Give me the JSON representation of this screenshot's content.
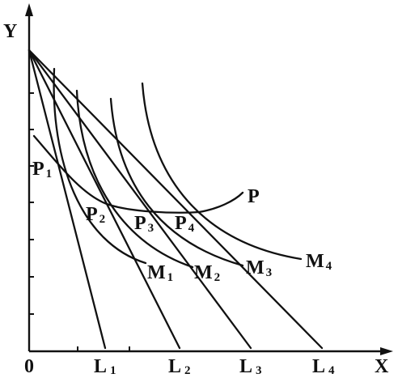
{
  "axes": {
    "x_label": "X",
    "y_label": "Y",
    "origin_label": "0"
  },
  "budget_lines": [
    {
      "letter": "L",
      "sub": "1"
    },
    {
      "letter": "L",
      "sub": "2"
    },
    {
      "letter": "L",
      "sub": "3"
    },
    {
      "letter": "L",
      "sub": "4"
    }
  ],
  "indifference_curves": [
    {
      "letter": "M",
      "sub": "1"
    },
    {
      "letter": "M",
      "sub": "2"
    },
    {
      "letter": "M",
      "sub": "3"
    },
    {
      "letter": "M",
      "sub": "4"
    }
  ],
  "tangency_points": [
    {
      "letter": "P",
      "sub": "1"
    },
    {
      "letter": "P",
      "sub": "2"
    },
    {
      "letter": "P",
      "sub": "3"
    },
    {
      "letter": "P",
      "sub": "4"
    }
  ],
  "path_curve_label": "P"
}
